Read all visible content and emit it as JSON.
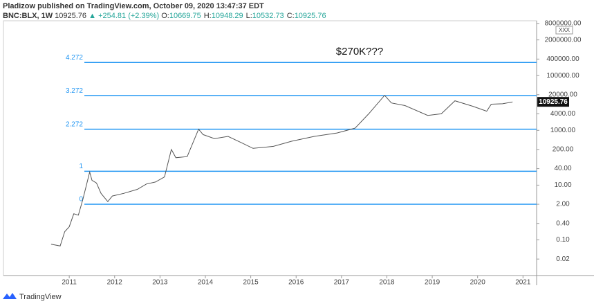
{
  "chart_data": {
    "type": "line",
    "byline": "Pladizow published on TradingView.com, October 09, 2020 13:47:37 EDT",
    "symbol": "BNC:BLX, 1W",
    "last": "10925.76",
    "change": "▲ +254.81 (+2.39%)",
    "ohlc": [
      {
        "key": "O:",
        "value": "10669.75"
      },
      {
        "key": "H:",
        "value": "10948.29"
      },
      {
        "key": "L:",
        "value": "10532.73"
      },
      {
        "key": "C:",
        "value": "10925.76"
      }
    ],
    "price_tag": 10925.76,
    "annotation": "$270K???",
    "currency_box": "XXX",
    "brand": "TradingView",
    "log_scale": true,
    "xlim": [
      2009.55,
      2021.3
    ],
    "xticks": [
      2011,
      2012,
      2013,
      2014,
      2015,
      2016,
      2017,
      2018,
      2019,
      2020,
      2021
    ],
    "ylim": [
      0.005,
      10000000
    ],
    "yticks": [
      {
        "value": 0.02,
        "label": "0.02"
      },
      {
        "value": 0.1,
        "label": "0.10"
      },
      {
        "value": 0.4,
        "label": "0.40"
      },
      {
        "value": 2,
        "label": "2.00"
      },
      {
        "value": 10,
        "label": "10.00"
      },
      {
        "value": 40,
        "label": "40.00"
      },
      {
        "value": 200,
        "label": "200.00"
      },
      {
        "value": 1000,
        "label": "1000.00"
      },
      {
        "value": 4000,
        "label": "4000.00"
      },
      {
        "value": 20000,
        "label": "20000.00"
      },
      {
        "value": 100000,
        "label": "100000.00"
      },
      {
        "value": 400000,
        "label": "400000.00"
      },
      {
        "value": 2000000,
        "label": "2000000.00"
      },
      {
        "value": 8000000,
        "label": "8000000.00"
      }
    ],
    "fib_levels": [
      {
        "level": 4.272,
        "price": 300000
      },
      {
        "level": 3.272,
        "price": 18500
      },
      {
        "level": 2.272,
        "price": 1100
      },
      {
        "level": 1,
        "price": 32
      },
      {
        "level": 0,
        "price": 2
      }
    ],
    "fib_color": "#2196f3",
    "series": [
      {
        "color": "#555555",
        "x": [
          2010.6,
          2010.8,
          2010.9,
          2011.0,
          2011.1,
          2011.2,
          2011.3,
          2011.45,
          2011.5,
          2011.6,
          2011.7,
          2011.85,
          2011.95,
          2012.2,
          2012.5,
          2012.7,
          2012.9,
          2013.1,
          2013.25,
          2013.35,
          2013.6,
          2013.85,
          2013.95,
          2014.2,
          2014.5,
          2014.8,
          2015.05,
          2015.5,
          2015.9,
          2016.4,
          2016.9,
          2017.3,
          2017.6,
          2017.95,
          2018.1,
          2018.4,
          2018.9,
          2019.2,
          2019.5,
          2019.9,
          2020.2,
          2020.3,
          2020.55,
          2020.77
        ],
        "values": [
          0.07,
          0.06,
          0.2,
          0.3,
          0.9,
          0.8,
          3,
          30,
          15,
          12,
          5,
          2.5,
          4,
          5,
          7,
          11,
          13,
          20,
          200,
          100,
          110,
          1100,
          700,
          500,
          600,
          350,
          220,
          260,
          400,
          600,
          800,
          1200,
          4000,
          19000,
          10000,
          8000,
          3500,
          4000,
          12000,
          7500,
          5000,
          9000,
          9300,
          10925.76
        ]
      }
    ]
  }
}
